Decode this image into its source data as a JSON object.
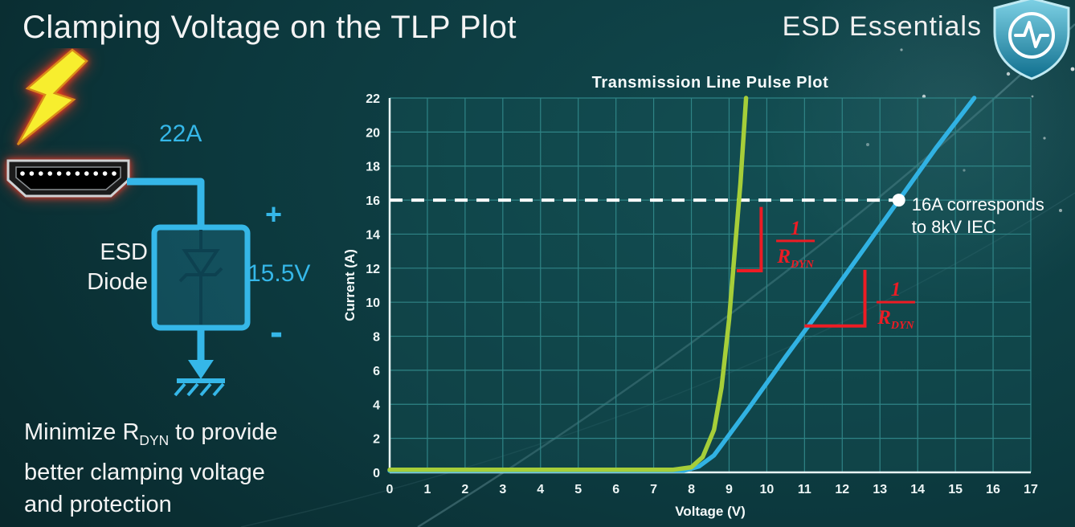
{
  "colors": {
    "accent_cyan": "#35b7e8",
    "curve_green": "#a6ce39",
    "curve_blue": "#31b2e3",
    "annotation_red": "#ed1c24",
    "grid_teal": "#2f8486"
  },
  "header": {
    "title": "Clamping Voltage on the TLP Plot",
    "brand": "ESD Essentials",
    "logo_icon": "shield-pulse-icon"
  },
  "circuit": {
    "strike_icon": "lightning-bolt-icon",
    "connector_icon": "hdmi-connector-icon",
    "surge_current": "22A",
    "device_name_line1": "ESD",
    "device_name_line2": "Diode",
    "polarity_plus": "+",
    "clamping_voltage": "15.5V",
    "polarity_minus": "-",
    "ground_icon": "ground-symbol-icon"
  },
  "note": {
    "line1_prefix": "Minimize R",
    "line1_sub": "DYN",
    "line1_suffix": " to provide",
    "line2": "better clamping voltage",
    "line3": "and protection"
  },
  "chart_data": {
    "type": "line",
    "title": "Transmission Line Pulse Plot",
    "xlabel": "Voltage (V)",
    "ylabel": "Current (A)",
    "xlim": [
      0,
      17
    ],
    "ylim": [
      0,
      22
    ],
    "x_ticks": [
      0,
      1,
      2,
      3,
      4,
      5,
      6,
      7,
      8,
      9,
      10,
      11,
      12,
      13,
      14,
      15,
      16,
      17
    ],
    "y_ticks": [
      0,
      2,
      4,
      6,
      8,
      10,
      12,
      14,
      16,
      18,
      20,
      22
    ],
    "grid": true,
    "series": [
      {
        "name": "green_curve",
        "color": "#a6ce39",
        "points": [
          [
            0,
            0.15
          ],
          [
            7.5,
            0.15
          ],
          [
            8.0,
            0.3
          ],
          [
            8.3,
            0.9
          ],
          [
            8.6,
            2.5
          ],
          [
            8.8,
            5
          ],
          [
            9.0,
            9
          ],
          [
            9.15,
            13
          ],
          [
            9.3,
            17
          ],
          [
            9.45,
            22
          ]
        ]
      },
      {
        "name": "blue_curve",
        "color": "#31b2e3",
        "points": [
          [
            0,
            0.1
          ],
          [
            7.8,
            0.1
          ],
          [
            8.2,
            0.35
          ],
          [
            8.6,
            1.0
          ],
          [
            9.0,
            2.2
          ],
          [
            9.5,
            3.7
          ],
          [
            10.5,
            6.8
          ],
          [
            11.5,
            9.8
          ],
          [
            12.5,
            12.9
          ],
          [
            13.5,
            16.0
          ],
          [
            14.5,
            19.1
          ],
          [
            15.5,
            22
          ]
        ]
      }
    ],
    "reference_line": {
      "y": 16,
      "x_start": 0,
      "x_end": 13.5,
      "style": "dashed",
      "color": "#ffffff"
    },
    "marker": {
      "x": 13.5,
      "y": 16,
      "color": "#ffffff"
    },
    "marker_label_line1": "16A corresponds",
    "marker_label_line2": "to 8kV IEC",
    "slope_annotations": [
      {
        "numerator": "1",
        "denominator": "R",
        "denominator_sub": "DYN",
        "color": "#ed1c24",
        "angle_points": [
          [
            9.85,
            15.6
          ],
          [
            9.85,
            11.85
          ],
          [
            9.2,
            11.85
          ]
        ],
        "label_pos": [
          10.76,
          13.6
        ]
      },
      {
        "numerator": "1",
        "denominator": "R",
        "denominator_sub": "DYN",
        "color": "#ed1c24",
        "angle_points": [
          [
            11.0,
            8.6
          ],
          [
            12.6,
            8.6
          ],
          [
            12.6,
            11.9
          ]
        ],
        "label_pos": [
          13.42,
          10.0
        ]
      }
    ]
  }
}
